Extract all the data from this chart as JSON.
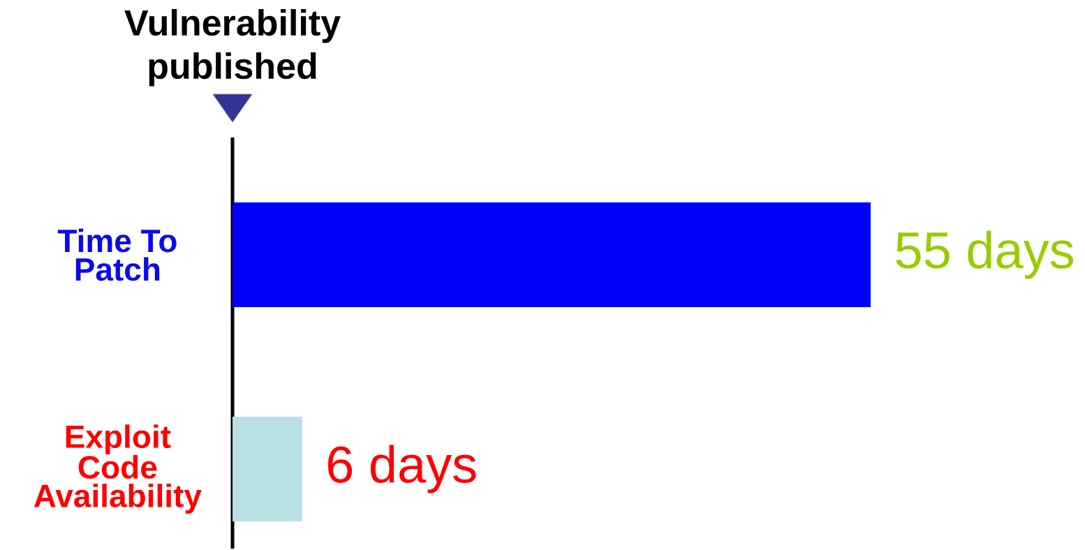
{
  "chart_data": {
    "type": "bar",
    "orientation": "horizontal",
    "categories": [
      "Time To Patch",
      "Exploit Code Availability"
    ],
    "values": [
      55,
      6
    ],
    "colors": [
      "#0000ff",
      "#b9e0e4"
    ],
    "value_labels": [
      "55 days",
      "6 days"
    ],
    "annotations": [
      "Vulnerability published"
    ]
  }
}
